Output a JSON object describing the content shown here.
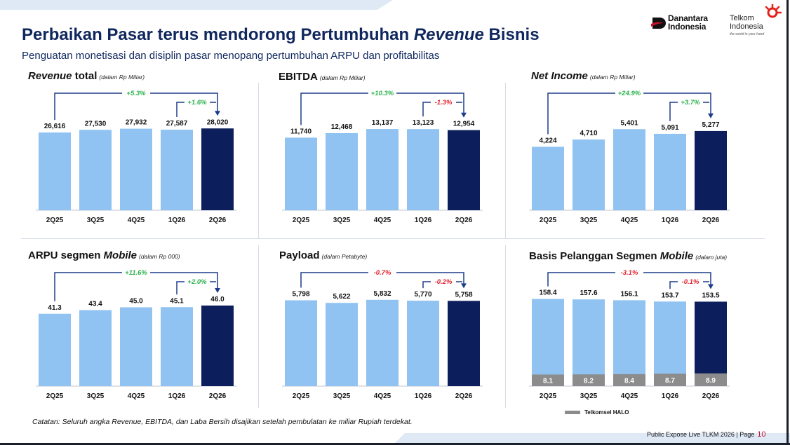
{
  "header": {
    "title_pre": "Perbaikan Pasar terus mendorong Pertumbuhan ",
    "title_italic": "Revenue",
    "title_post": " Bisnis",
    "subtitle": "Penguatan monetisasi dan disiplin pasar menopang pertumbuhan ARPU dan profitabilitas",
    "logo_danantara_line1": "Danantara",
    "logo_danantara_line2": "Indonesia",
    "logo_telkom_line1": "Telkom",
    "logo_telkom_line2": "Indonesia",
    "logo_telkom_tagline": "the world in your hand"
  },
  "colors": {
    "bar_light": "#90c3f1",
    "bar_dark": "#0c1f5c",
    "bar_halo": "#8c8c8c",
    "growth_positive": "#2bb24c",
    "growth_negative": "#e01e2a",
    "bracket": "#1d3c8a"
  },
  "chart_data": [
    {
      "type": "bar",
      "title_italic": "Revenue",
      "title_rest": " total",
      "unit": "(dalam Rp Miliar)",
      "categories": [
        "2Q25",
        "3Q25",
        "4Q25",
        "1Q26",
        "2Q26"
      ],
      "values": [
        26616,
        27530,
        27932,
        27587,
        28020
      ],
      "value_labels": [
        "26,616",
        "27,530",
        "27,932",
        "27,587",
        "28,020"
      ],
      "ylim": [
        0,
        36000
      ],
      "growth_long": "+5.3%",
      "growth_short": "+1.6%"
    },
    {
      "type": "bar",
      "title_italic": "",
      "title_rest": "EBITDA",
      "unit": "(dalam Rp Miliar)",
      "categories": [
        "2Q25",
        "3Q25",
        "4Q25",
        "1Q26",
        "2Q26"
      ],
      "values": [
        11740,
        12468,
        13137,
        13123,
        12954
      ],
      "value_labels": [
        "11,740",
        "12,468",
        "13,137",
        "13,123",
        "12,954"
      ],
      "ylim": [
        0,
        17000
      ],
      "growth_long": "+10.3%",
      "growth_short": "-1.3%"
    },
    {
      "type": "bar",
      "title_italic": "Net Income",
      "title_rest": "",
      "unit": "(dalam Rp Miliar)",
      "categories": [
        "2Q25",
        "3Q25",
        "4Q25",
        "1Q26",
        "2Q26"
      ],
      "values": [
        4224,
        4710,
        5401,
        5091,
        5277
      ],
      "value_labels": [
        "4,224",
        "4,710",
        "5,401",
        "5,091",
        "5,277"
      ],
      "ylim": [
        0,
        7000
      ],
      "growth_long": "+24.9%",
      "growth_short": "+3.7%"
    },
    {
      "type": "bar",
      "title_italic": "Mobile",
      "title_pre": "ARPU segmen ",
      "title_rest": "",
      "unit": "(dalam Rp 000)",
      "categories": [
        "2Q25",
        "3Q25",
        "4Q25",
        "1Q26",
        "2Q26"
      ],
      "values": [
        41.3,
        43.4,
        45.0,
        45.1,
        46.0
      ],
      "value_labels": [
        "41.3",
        "43.4",
        "45.0",
        "45.1",
        "46.0"
      ],
      "ylim": [
        0,
        60
      ],
      "growth_long": "+11.6%",
      "growth_short": "+2.0%"
    },
    {
      "type": "bar",
      "title_italic": "",
      "title_rest": "Payload",
      "unit": "(dalam Petabyte)",
      "categories": [
        "2Q25",
        "3Q25",
        "4Q25",
        "1Q26",
        "2Q26"
      ],
      "values": [
        5798,
        5622,
        5832,
        5770,
        5758
      ],
      "value_labels": [
        "5,798",
        "5,622",
        "5,832",
        "5,770",
        "5,758"
      ],
      "ylim": [
        0,
        7100
      ],
      "growth_long": "-0.7%",
      "growth_short": "-0.2%"
    },
    {
      "type": "bar",
      "title_italic": "Mobile",
      "title_pre": "Basis Pelanggan Segmen ",
      "title_rest": "",
      "unit": "(dalam juta)",
      "categories": [
        "2Q25",
        "3Q25",
        "4Q25",
        "1Q26",
        "2Q26"
      ],
      "values": [
        158.4,
        157.6,
        156.1,
        153.7,
        153.5
      ],
      "value_labels": [
        "158.4",
        "157.6",
        "156.1",
        "153.7",
        "153.5"
      ],
      "halo_values": [
        8.1,
        8.2,
        8.4,
        8.7,
        8.9
      ],
      "halo_labels": [
        "8.1",
        "8.2",
        "8.4",
        "8.7",
        "8.9"
      ],
      "ylim": [
        0,
        191
      ],
      "growth_long": "-3.1%",
      "growth_short": "-0.1%",
      "legend": "Telkomsel HALO"
    }
  ],
  "note": "Catatan: Seluruh angka Revenue, EBITDA, dan Laba Bersih disajikan setelah pembulatan ke miliar Rupiah terdekat.",
  "footer": {
    "text": "Public Expose Live TLKM 2026 | Page",
    "page": "10"
  }
}
